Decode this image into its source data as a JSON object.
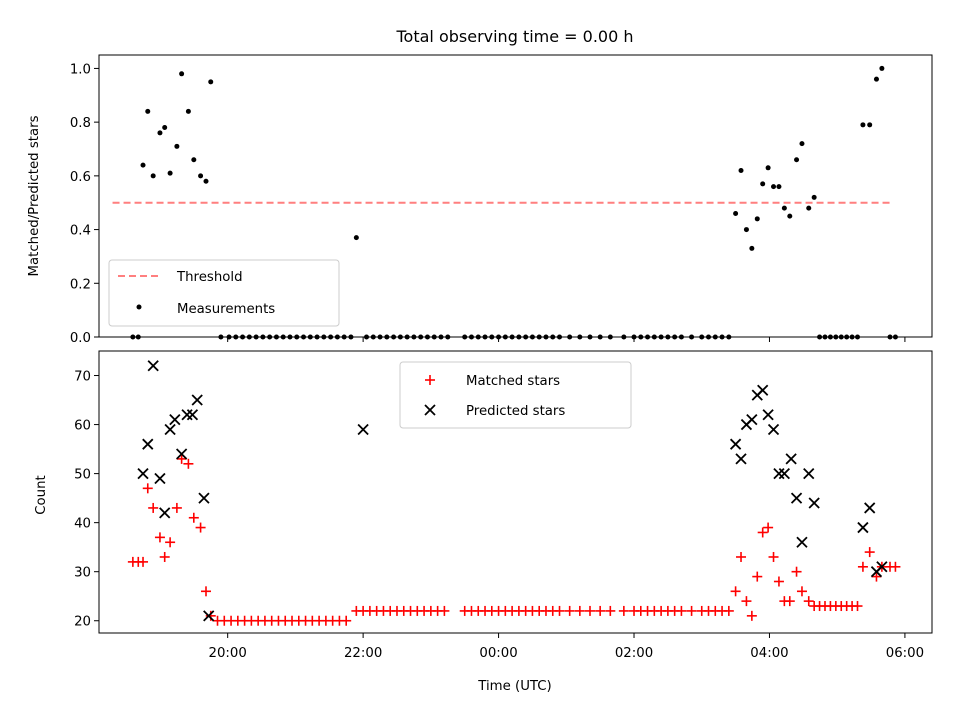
{
  "colors": {
    "threshold": "#ff7f7f",
    "measurement": "#000000",
    "matched": "#ff0000",
    "predicted": "#000000"
  },
  "chart_data": [
    {
      "type": "scatter",
      "title": "Total observing time = 0.00 h",
      "xlabel": "",
      "ylabel": "Matched/Predicted stars",
      "x_unit": "hours since 00:00 UTC",
      "xlim": [
        -5.9,
        6.4
      ],
      "ylim": [
        0.0,
        1.05
      ],
      "yticks": [
        0.0,
        0.2,
        0.4,
        0.6,
        0.8,
        1.0
      ],
      "ytick_labels": [
        "0.0",
        "0.2",
        "0.4",
        "0.6",
        "0.8",
        "1.0"
      ],
      "xtick_labels_visible": false,
      "legend": {
        "placement": "lower-left",
        "entries": [
          "Threshold",
          "Measurements"
        ]
      },
      "threshold": {
        "name": "Threshold",
        "x": [
          -5.7,
          5.8
        ],
        "y": 0.5
      },
      "series": [
        {
          "name": "Measurements",
          "marker": "dot",
          "points": [
            [
              -5.4,
              0
            ],
            [
              -5.32,
              0
            ],
            [
              -5.25,
              0.64
            ],
            [
              -5.18,
              0.84
            ],
            [
              -5.1,
              0.6
            ],
            [
              -5.0,
              0.76
            ],
            [
              -4.93,
              0.78
            ],
            [
              -4.85,
              0.61
            ],
            [
              -4.75,
              0.71
            ],
            [
              -4.68,
              0.98
            ],
            [
              -4.58,
              0.84
            ],
            [
              -4.5,
              0.66
            ],
            [
              -4.4,
              0.6
            ],
            [
              -4.32,
              0.58
            ],
            [
              -4.25,
              0.95
            ],
            [
              -4.1,
              0
            ],
            [
              -3.98,
              0
            ],
            [
              -3.88,
              0
            ],
            [
              -3.78,
              0
            ],
            [
              -3.68,
              0
            ],
            [
              -3.58,
              0
            ],
            [
              -3.48,
              0
            ],
            [
              -3.38,
              0
            ],
            [
              -3.28,
              0
            ],
            [
              -3.18,
              0
            ],
            [
              -3.08,
              0
            ],
            [
              -2.98,
              0
            ],
            [
              -2.88,
              0
            ],
            [
              -2.78,
              0
            ],
            [
              -2.68,
              0
            ],
            [
              -2.58,
              0
            ],
            [
              -2.48,
              0
            ],
            [
              -2.38,
              0
            ],
            [
              -2.28,
              0
            ],
            [
              -2.18,
              0
            ],
            [
              -2.1,
              0.37
            ],
            [
              -1.95,
              0
            ],
            [
              -1.85,
              0
            ],
            [
              -1.75,
              0
            ],
            [
              -1.65,
              0
            ],
            [
              -1.55,
              0
            ],
            [
              -1.45,
              0
            ],
            [
              -1.35,
              0
            ],
            [
              -1.25,
              0
            ],
            [
              -1.15,
              0
            ],
            [
              -1.05,
              0
            ],
            [
              -0.95,
              0
            ],
            [
              -0.85,
              0
            ],
            [
              -0.75,
              0
            ],
            [
              -0.5,
              0
            ],
            [
              -0.4,
              0
            ],
            [
              -0.3,
              0
            ],
            [
              -0.2,
              0
            ],
            [
              -0.1,
              0
            ],
            [
              0.0,
              0
            ],
            [
              0.1,
              0
            ],
            [
              0.2,
              0
            ],
            [
              0.3,
              0
            ],
            [
              0.4,
              0
            ],
            [
              0.5,
              0
            ],
            [
              0.6,
              0
            ],
            [
              0.7,
              0
            ],
            [
              0.8,
              0
            ],
            [
              0.9,
              0
            ],
            [
              1.05,
              0
            ],
            [
              1.2,
              0
            ],
            [
              1.35,
              0
            ],
            [
              1.5,
              0
            ],
            [
              1.65,
              0
            ],
            [
              1.85,
              0
            ],
            [
              2.0,
              0
            ],
            [
              2.1,
              0
            ],
            [
              2.2,
              0
            ],
            [
              2.3,
              0
            ],
            [
              2.4,
              0
            ],
            [
              2.5,
              0
            ],
            [
              2.6,
              0
            ],
            [
              2.7,
              0
            ],
            [
              2.85,
              0
            ],
            [
              3.0,
              0
            ],
            [
              3.1,
              0
            ],
            [
              3.2,
              0
            ],
            [
              3.3,
              0
            ],
            [
              3.4,
              0
            ],
            [
              3.5,
              0.46
            ],
            [
              3.58,
              0.62
            ],
            [
              3.66,
              0.4
            ],
            [
              3.74,
              0.33
            ],
            [
              3.82,
              0.44
            ],
            [
              3.9,
              0.57
            ],
            [
              3.98,
              0.63
            ],
            [
              4.06,
              0.56
            ],
            [
              4.14,
              0.56
            ],
            [
              4.22,
              0.48
            ],
            [
              4.3,
              0.45
            ],
            [
              4.4,
              0.66
            ],
            [
              4.48,
              0.72
            ],
            [
              4.58,
              0.48
            ],
            [
              4.66,
              0.52
            ],
            [
              4.74,
              0
            ],
            [
              4.82,
              0
            ],
            [
              4.9,
              0
            ],
            [
              4.98,
              0
            ],
            [
              5.06,
              0
            ],
            [
              5.14,
              0
            ],
            [
              5.22,
              0
            ],
            [
              5.3,
              0
            ],
            [
              5.38,
              0.79
            ],
            [
              5.48,
              0.79
            ],
            [
              5.58,
              0.96
            ],
            [
              5.66,
              1.0
            ],
            [
              5.78,
              0
            ],
            [
              5.86,
              0
            ]
          ]
        }
      ]
    },
    {
      "type": "scatter",
      "title": "",
      "xlabel": "Time (UTC)",
      "ylabel": "Count",
      "x_unit": "hours since 00:00 UTC",
      "xlim": [
        -5.9,
        6.4
      ],
      "ylim": [
        17.5,
        75
      ],
      "yticks": [
        20,
        30,
        40,
        50,
        60,
        70
      ],
      "ytick_labels": [
        "20",
        "30",
        "40",
        "50",
        "60",
        "70"
      ],
      "xticks": [
        -4,
        -2,
        0,
        2,
        4,
        6
      ],
      "xtick_labels": [
        "20:00",
        "22:00",
        "00:00",
        "02:00",
        "04:00",
        "06:00"
      ],
      "legend": {
        "placement": "upper-center",
        "entries": [
          "Matched stars",
          "Predicted stars"
        ]
      },
      "series": [
        {
          "name": "Matched stars",
          "marker": "plus",
          "points": [
            [
              -5.4,
              32
            ],
            [
              -5.32,
              32
            ],
            [
              -5.25,
              32
            ],
            [
              -5.18,
              47
            ],
            [
              -5.1,
              43
            ],
            [
              -5.0,
              37
            ],
            [
              -4.93,
              33
            ],
            [
              -4.85,
              36
            ],
            [
              -4.75,
              43
            ],
            [
              -4.68,
              53
            ],
            [
              -4.58,
              52
            ],
            [
              -4.5,
              41
            ],
            [
              -4.4,
              39
            ],
            [
              -4.32,
              26
            ],
            [
              -4.25,
              21
            ],
            [
              -4.15,
              20
            ],
            [
              -4.05,
              20
            ],
            [
              -3.95,
              20
            ],
            [
              -3.85,
              20
            ],
            [
              -3.75,
              20
            ],
            [
              -3.65,
              20
            ],
            [
              -3.55,
              20
            ],
            [
              -3.45,
              20
            ],
            [
              -3.35,
              20
            ],
            [
              -3.25,
              20
            ],
            [
              -3.15,
              20
            ],
            [
              -3.05,
              20
            ],
            [
              -2.95,
              20
            ],
            [
              -2.85,
              20
            ],
            [
              -2.75,
              20
            ],
            [
              -2.65,
              20
            ],
            [
              -2.55,
              20
            ],
            [
              -2.45,
              20
            ],
            [
              -2.35,
              20
            ],
            [
              -2.25,
              20
            ],
            [
              -2.1,
              22
            ],
            [
              -2.0,
              22
            ],
            [
              -1.9,
              22
            ],
            [
              -1.8,
              22
            ],
            [
              -1.7,
              22
            ],
            [
              -1.6,
              22
            ],
            [
              -1.5,
              22
            ],
            [
              -1.4,
              22
            ],
            [
              -1.3,
              22
            ],
            [
              -1.2,
              22
            ],
            [
              -1.1,
              22
            ],
            [
              -1.0,
              22
            ],
            [
              -0.9,
              22
            ],
            [
              -0.8,
              22
            ],
            [
              -0.5,
              22
            ],
            [
              -0.4,
              22
            ],
            [
              -0.3,
              22
            ],
            [
              -0.2,
              22
            ],
            [
              -0.1,
              22
            ],
            [
              0.0,
              22
            ],
            [
              0.1,
              22
            ],
            [
              0.2,
              22
            ],
            [
              0.3,
              22
            ],
            [
              0.4,
              22
            ],
            [
              0.5,
              22
            ],
            [
              0.6,
              22
            ],
            [
              0.7,
              22
            ],
            [
              0.8,
              22
            ],
            [
              0.9,
              22
            ],
            [
              1.05,
              22
            ],
            [
              1.2,
              22
            ],
            [
              1.35,
              22
            ],
            [
              1.5,
              22
            ],
            [
              1.65,
              22
            ],
            [
              1.85,
              22
            ],
            [
              2.0,
              22
            ],
            [
              2.1,
              22
            ],
            [
              2.2,
              22
            ],
            [
              2.3,
              22
            ],
            [
              2.4,
              22
            ],
            [
              2.5,
              22
            ],
            [
              2.6,
              22
            ],
            [
              2.7,
              22
            ],
            [
              2.85,
              22
            ],
            [
              3.0,
              22
            ],
            [
              3.1,
              22
            ],
            [
              3.2,
              22
            ],
            [
              3.3,
              22
            ],
            [
              3.4,
              22
            ],
            [
              3.5,
              26
            ],
            [
              3.58,
              33
            ],
            [
              3.66,
              24
            ],
            [
              3.74,
              21
            ],
            [
              3.82,
              29
            ],
            [
              3.9,
              38
            ],
            [
              3.98,
              39
            ],
            [
              4.06,
              33
            ],
            [
              4.14,
              28
            ],
            [
              4.22,
              24
            ],
            [
              4.3,
              24
            ],
            [
              4.4,
              30
            ],
            [
              4.48,
              26
            ],
            [
              4.58,
              24
            ],
            [
              4.66,
              23
            ],
            [
              4.74,
              23
            ],
            [
              4.82,
              23
            ],
            [
              4.9,
              23
            ],
            [
              4.98,
              23
            ],
            [
              5.06,
              23
            ],
            [
              5.14,
              23
            ],
            [
              5.22,
              23
            ],
            [
              5.3,
              23
            ],
            [
              5.38,
              31
            ],
            [
              5.48,
              34
            ],
            [
              5.58,
              29
            ],
            [
              5.66,
              31
            ],
            [
              5.78,
              31
            ],
            [
              5.86,
              31
            ]
          ]
        },
        {
          "name": "Predicted stars",
          "marker": "x",
          "points": [
            [
              -5.25,
              50
            ],
            [
              -5.18,
              56
            ],
            [
              -5.1,
              72
            ],
            [
              -5.0,
              49
            ],
            [
              -4.93,
              42
            ],
            [
              -4.85,
              59
            ],
            [
              -4.78,
              61
            ],
            [
              -4.68,
              54
            ],
            [
              -4.6,
              62
            ],
            [
              -4.52,
              62
            ],
            [
              -4.45,
              65
            ],
            [
              -4.35,
              45
            ],
            [
              -4.28,
              21
            ],
            [
              -2.0,
              59
            ],
            [
              3.5,
              56
            ],
            [
              3.58,
              53
            ],
            [
              3.66,
              60
            ],
            [
              3.74,
              61
            ],
            [
              3.82,
              66
            ],
            [
              3.9,
              67
            ],
            [
              3.98,
              62
            ],
            [
              4.06,
              59
            ],
            [
              4.14,
              50
            ],
            [
              4.22,
              50
            ],
            [
              4.32,
              53
            ],
            [
              4.4,
              45
            ],
            [
              4.48,
              36
            ],
            [
              4.58,
              50
            ],
            [
              4.66,
              44
            ],
            [
              5.38,
              39
            ],
            [
              5.48,
              43
            ],
            [
              5.58,
              30
            ],
            [
              5.66,
              31
            ]
          ]
        }
      ]
    }
  ]
}
